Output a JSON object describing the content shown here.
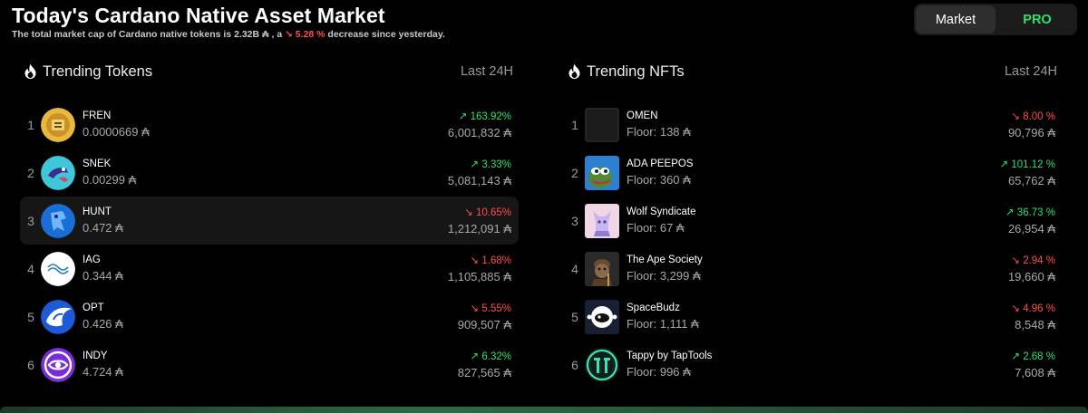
{
  "header": {
    "title": "Today's Cardano Native Asset Market",
    "subtitle_prefix": "The total market cap of Cardano native tokens is 2.32B ₳ , a ",
    "subtitle_change": "↘ 5.28 %",
    "subtitle_suffix": " decrease since yesterday."
  },
  "toggle": {
    "market": "Market",
    "pro": "PRO"
  },
  "tokens": {
    "title": "Trending Tokens",
    "period": "Last 24H",
    "items": [
      {
        "rank": "1",
        "name": "FREN",
        "price": "0.0000669 ₳",
        "change": "↗ 163.92%",
        "volume": "6,001,832 ₳"
      },
      {
        "rank": "2",
        "name": "SNEK",
        "price": "0.00299 ₳",
        "change": "↗ 3.33%",
        "volume": "5,081,143 ₳"
      },
      {
        "rank": "3",
        "name": "HUNT",
        "price": "0.472 ₳",
        "change": "↘ 10.65%",
        "volume": "1,212,091 ₳"
      },
      {
        "rank": "4",
        "name": "IAG",
        "price": "0.344 ₳",
        "change": "↘ 1.68%",
        "volume": "1,105,885 ₳"
      },
      {
        "rank": "5",
        "name": "OPT",
        "price": "0.426 ₳",
        "change": "↘ 5.55%",
        "volume": "909,507 ₳"
      },
      {
        "rank": "6",
        "name": "INDY",
        "price": "4.724 ₳",
        "change": "↗ 6.32%",
        "volume": "827,565 ₳"
      }
    ]
  },
  "nfts": {
    "title": "Trending NFTs",
    "period": "Last 24H",
    "items": [
      {
        "rank": "1",
        "name": "OMEN",
        "floor": "Floor: 138 ₳",
        "change": "↘ 8.00 %",
        "volume": "90,796 ₳"
      },
      {
        "rank": "2",
        "name": "ADA PEEPOS",
        "floor": "Floor: 360 ₳",
        "change": "↗ 101.12 %",
        "volume": "65,762 ₳"
      },
      {
        "rank": "3",
        "name": "Wolf Syndicate",
        "floor": "Floor: 67 ₳",
        "change": "↗ 36.73 %",
        "volume": "26,954 ₳"
      },
      {
        "rank": "4",
        "name": "The Ape Society",
        "floor": "Floor: 3,299 ₳",
        "change": "↘ 2.94 %",
        "volume": "19,660 ₳"
      },
      {
        "rank": "5",
        "name": "SpaceBudz",
        "floor": "Floor: 1,111 ₳",
        "change": "↘ 4.96 %",
        "volume": "8,548 ₳"
      },
      {
        "rank": "6",
        "name": "Tappy by TapTools",
        "floor": "Floor: 996 ₳",
        "change": "↗ 2.68 %",
        "volume": "7,608 ₳"
      }
    ]
  }
}
